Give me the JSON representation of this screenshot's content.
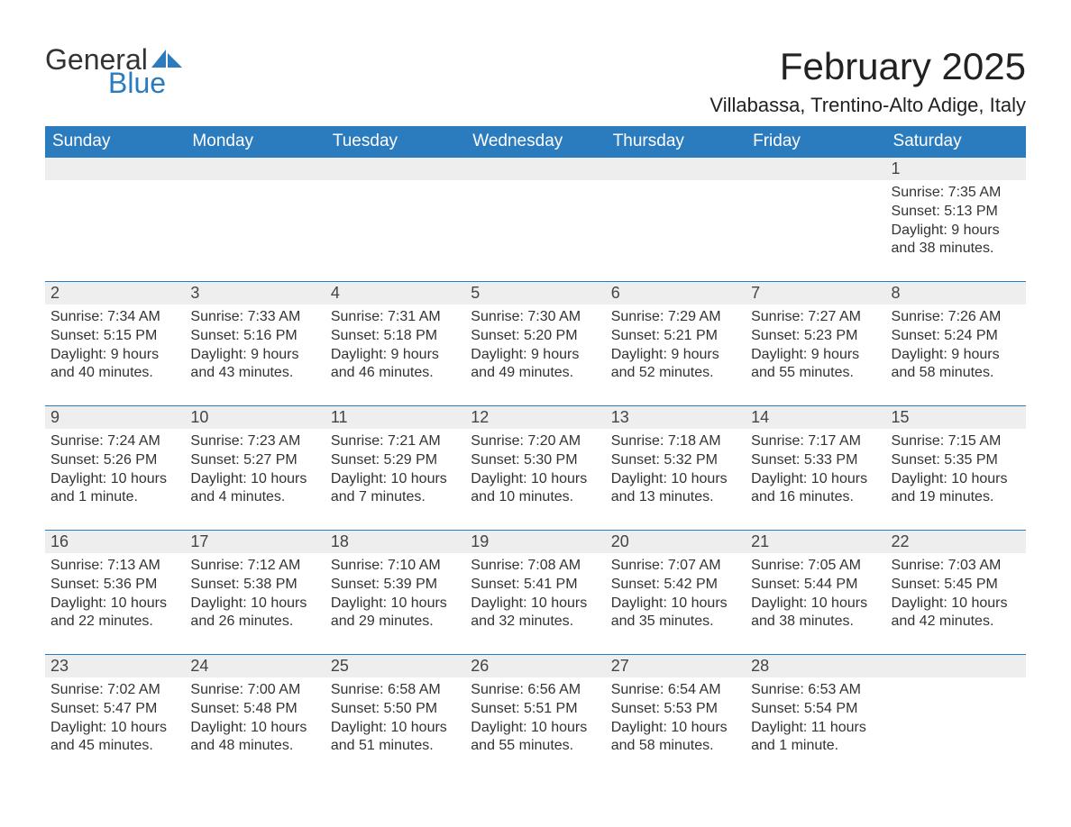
{
  "logo": {
    "text1": "General",
    "text2": "Blue",
    "sail_color": "#2b7bbf"
  },
  "title": "February 2025",
  "location": "Villabassa, Trentino-Alto Adige, Italy",
  "colors": {
    "header_bg": "#2b7bbf",
    "header_text": "#ffffff",
    "daynum_bg": "#eeeeee",
    "border": "#2b7bbf",
    "body_text": "#333333"
  },
  "weekdays": [
    "Sunday",
    "Monday",
    "Tuesday",
    "Wednesday",
    "Thursday",
    "Friday",
    "Saturday"
  ],
  "weeks": [
    [
      null,
      null,
      null,
      null,
      null,
      null,
      {
        "n": "1",
        "sunrise": "Sunrise: 7:35 AM",
        "sunset": "Sunset: 5:13 PM",
        "daylight": "Daylight: 9 hours and 38 minutes."
      }
    ],
    [
      {
        "n": "2",
        "sunrise": "Sunrise: 7:34 AM",
        "sunset": "Sunset: 5:15 PM",
        "daylight": "Daylight: 9 hours and 40 minutes."
      },
      {
        "n": "3",
        "sunrise": "Sunrise: 7:33 AM",
        "sunset": "Sunset: 5:16 PM",
        "daylight": "Daylight: 9 hours and 43 minutes."
      },
      {
        "n": "4",
        "sunrise": "Sunrise: 7:31 AM",
        "sunset": "Sunset: 5:18 PM",
        "daylight": "Daylight: 9 hours and 46 minutes."
      },
      {
        "n": "5",
        "sunrise": "Sunrise: 7:30 AM",
        "sunset": "Sunset: 5:20 PM",
        "daylight": "Daylight: 9 hours and 49 minutes."
      },
      {
        "n": "6",
        "sunrise": "Sunrise: 7:29 AM",
        "sunset": "Sunset: 5:21 PM",
        "daylight": "Daylight: 9 hours and 52 minutes."
      },
      {
        "n": "7",
        "sunrise": "Sunrise: 7:27 AM",
        "sunset": "Sunset: 5:23 PM",
        "daylight": "Daylight: 9 hours and 55 minutes."
      },
      {
        "n": "8",
        "sunrise": "Sunrise: 7:26 AM",
        "sunset": "Sunset: 5:24 PM",
        "daylight": "Daylight: 9 hours and 58 minutes."
      }
    ],
    [
      {
        "n": "9",
        "sunrise": "Sunrise: 7:24 AM",
        "sunset": "Sunset: 5:26 PM",
        "daylight": "Daylight: 10 hours and 1 minute."
      },
      {
        "n": "10",
        "sunrise": "Sunrise: 7:23 AM",
        "sunset": "Sunset: 5:27 PM",
        "daylight": "Daylight: 10 hours and 4 minutes."
      },
      {
        "n": "11",
        "sunrise": "Sunrise: 7:21 AM",
        "sunset": "Sunset: 5:29 PM",
        "daylight": "Daylight: 10 hours and 7 minutes."
      },
      {
        "n": "12",
        "sunrise": "Sunrise: 7:20 AM",
        "sunset": "Sunset: 5:30 PM",
        "daylight": "Daylight: 10 hours and 10 minutes."
      },
      {
        "n": "13",
        "sunrise": "Sunrise: 7:18 AM",
        "sunset": "Sunset: 5:32 PM",
        "daylight": "Daylight: 10 hours and 13 minutes."
      },
      {
        "n": "14",
        "sunrise": "Sunrise: 7:17 AM",
        "sunset": "Sunset: 5:33 PM",
        "daylight": "Daylight: 10 hours and 16 minutes."
      },
      {
        "n": "15",
        "sunrise": "Sunrise: 7:15 AM",
        "sunset": "Sunset: 5:35 PM",
        "daylight": "Daylight: 10 hours and 19 minutes."
      }
    ],
    [
      {
        "n": "16",
        "sunrise": "Sunrise: 7:13 AM",
        "sunset": "Sunset: 5:36 PM",
        "daylight": "Daylight: 10 hours and 22 minutes."
      },
      {
        "n": "17",
        "sunrise": "Sunrise: 7:12 AM",
        "sunset": "Sunset: 5:38 PM",
        "daylight": "Daylight: 10 hours and 26 minutes."
      },
      {
        "n": "18",
        "sunrise": "Sunrise: 7:10 AM",
        "sunset": "Sunset: 5:39 PM",
        "daylight": "Daylight: 10 hours and 29 minutes."
      },
      {
        "n": "19",
        "sunrise": "Sunrise: 7:08 AM",
        "sunset": "Sunset: 5:41 PM",
        "daylight": "Daylight: 10 hours and 32 minutes."
      },
      {
        "n": "20",
        "sunrise": "Sunrise: 7:07 AM",
        "sunset": "Sunset: 5:42 PM",
        "daylight": "Daylight: 10 hours and 35 minutes."
      },
      {
        "n": "21",
        "sunrise": "Sunrise: 7:05 AM",
        "sunset": "Sunset: 5:44 PM",
        "daylight": "Daylight: 10 hours and 38 minutes."
      },
      {
        "n": "22",
        "sunrise": "Sunrise: 7:03 AM",
        "sunset": "Sunset: 5:45 PM",
        "daylight": "Daylight: 10 hours and 42 minutes."
      }
    ],
    [
      {
        "n": "23",
        "sunrise": "Sunrise: 7:02 AM",
        "sunset": "Sunset: 5:47 PM",
        "daylight": "Daylight: 10 hours and 45 minutes."
      },
      {
        "n": "24",
        "sunrise": "Sunrise: 7:00 AM",
        "sunset": "Sunset: 5:48 PM",
        "daylight": "Daylight: 10 hours and 48 minutes."
      },
      {
        "n": "25",
        "sunrise": "Sunrise: 6:58 AM",
        "sunset": "Sunset: 5:50 PM",
        "daylight": "Daylight: 10 hours and 51 minutes."
      },
      {
        "n": "26",
        "sunrise": "Sunrise: 6:56 AM",
        "sunset": "Sunset: 5:51 PM",
        "daylight": "Daylight: 10 hours and 55 minutes."
      },
      {
        "n": "27",
        "sunrise": "Sunrise: 6:54 AM",
        "sunset": "Sunset: 5:53 PM",
        "daylight": "Daylight: 10 hours and 58 minutes."
      },
      {
        "n": "28",
        "sunrise": "Sunrise: 6:53 AM",
        "sunset": "Sunset: 5:54 PM",
        "daylight": "Daylight: 11 hours and 1 minute."
      },
      null
    ]
  ]
}
